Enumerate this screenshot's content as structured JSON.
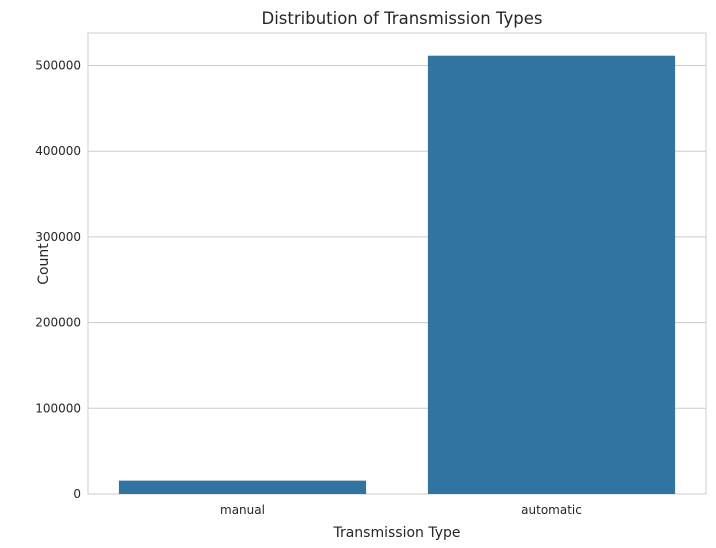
{
  "chart_data": {
    "type": "bar",
    "title": "Distribution of Transmission Types",
    "xlabel": "Transmission Type",
    "ylabel": "Count",
    "categories": [
      "manual",
      "automatic"
    ],
    "values": [
      15600,
      511500
    ],
    "ylim": [
      0,
      538000
    ],
    "yticks": [
      0,
      100000,
      200000,
      300000,
      400000,
      500000
    ],
    "grid": true,
    "legend": "none",
    "bar_color": "#3274a1"
  }
}
